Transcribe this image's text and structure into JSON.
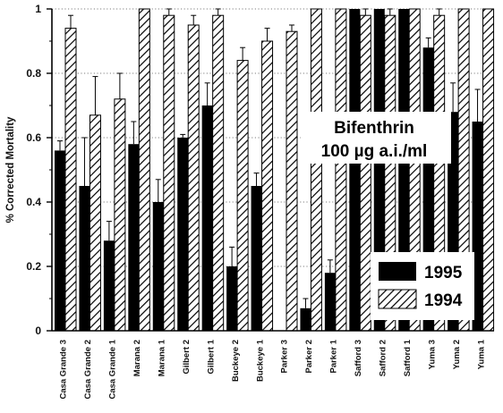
{
  "chart_data": {
    "type": "bar",
    "ylabel": "% Corrected Mortality",
    "ylim": [
      0,
      1
    ],
    "yticks": [
      "0",
      "0.2",
      "0.4",
      "0.6",
      "0.8",
      "1"
    ],
    "grid": "horizontal dotted",
    "annotation": [
      "Bifenthrin",
      "100 µg a.i./ml"
    ],
    "legend_position": "bottom-right",
    "categories": [
      "Casa Grande 3",
      "Casa Grande 2",
      "Casa Grande 1",
      "Marana 2",
      "Marana 1",
      "Gilbert 2",
      "Gilbert 1",
      "Buckeye 2",
      "Buckeye 1",
      "Parker 3",
      "Parker 2",
      "Parker 1",
      "Safford 3",
      "Safford 2",
      "Safford 1",
      "Yuma 3",
      "Yuma 2",
      "Yuma 1"
    ],
    "series": [
      {
        "name": "1995",
        "pattern": "solid",
        "color": "#000000",
        "values": [
          0.56,
          0.45,
          0.28,
          0.58,
          0.4,
          0.6,
          0.7,
          0.2,
          0.45,
          0.0,
          0.07,
          0.18,
          1.0,
          1.0,
          1.0,
          0.88,
          0.68,
          0.65
        ],
        "errors": [
          0.03,
          0.15,
          0.06,
          0.07,
          0.07,
          0.01,
          0.07,
          0.06,
          0.04,
          0.0,
          0.03,
          0.04,
          0.0,
          0.0,
          0.0,
          0.03,
          0.09,
          0.1
        ]
      },
      {
        "name": "1994",
        "pattern": "diagonal-hatch",
        "color": "#000000",
        "values": [
          0.94,
          0.67,
          0.72,
          1.0,
          0.98,
          0.95,
          0.98,
          0.84,
          0.9,
          0.93,
          1.0,
          1.0,
          0.98,
          0.98,
          1.0,
          0.98,
          1.0,
          1.0
        ],
        "errors": [
          0.04,
          0.12,
          0.08,
          0.0,
          0.02,
          0.03,
          0.02,
          0.04,
          0.04,
          0.02,
          0.0,
          0.0,
          0.02,
          0.02,
          0.0,
          0.02,
          0.0,
          0.0
        ]
      }
    ]
  }
}
